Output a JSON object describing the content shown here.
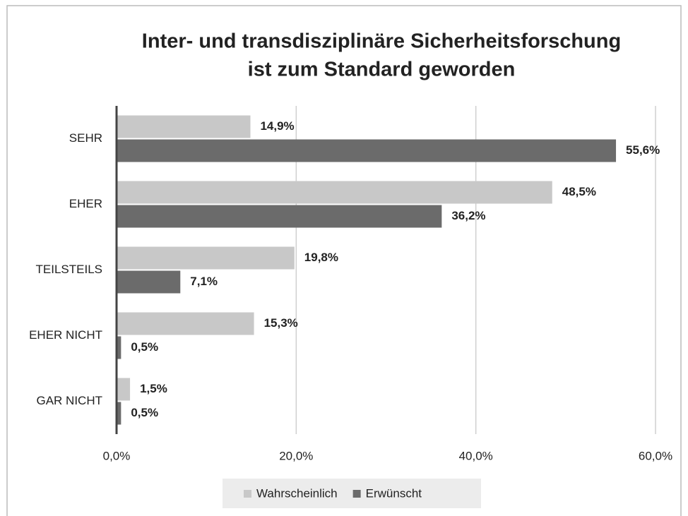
{
  "chart_data": {
    "type": "hbar",
    "title": [
      "Inter- und transdisziplinäre Sicherheitsforschung",
      "ist zum Standard geworden"
    ],
    "categories": [
      "SEHR",
      "EHER",
      "TEILSTEILS",
      "EHER NICHT",
      "GAR NICHT"
    ],
    "series": [
      {
        "name": "Wahrscheinlich",
        "color": "#c8c8c8",
        "values": [
          14.9,
          48.5,
          19.8,
          15.3,
          1.5
        ],
        "value_labels": [
          "14,9%",
          "48,5%",
          "19,8%",
          "15,3%",
          "1,5%"
        ]
      },
      {
        "name": "Erwünscht",
        "color": "#6b6b6b",
        "values": [
          55.6,
          36.2,
          7.1,
          0.5,
          0.5
        ],
        "value_labels": [
          "55,6%",
          "36,2%",
          "7,1%",
          "0,5%",
          "0,5%"
        ]
      }
    ],
    "xlim": [
      0,
      60
    ],
    "xticks": [
      {
        "value": 0,
        "label": "0,0%"
      },
      {
        "value": 20,
        "label": "20,0%"
      },
      {
        "value": 40,
        "label": "40,0%"
      },
      {
        "value": 60,
        "label": "60,0%"
      }
    ],
    "grid": true,
    "legend": "bottom"
  }
}
